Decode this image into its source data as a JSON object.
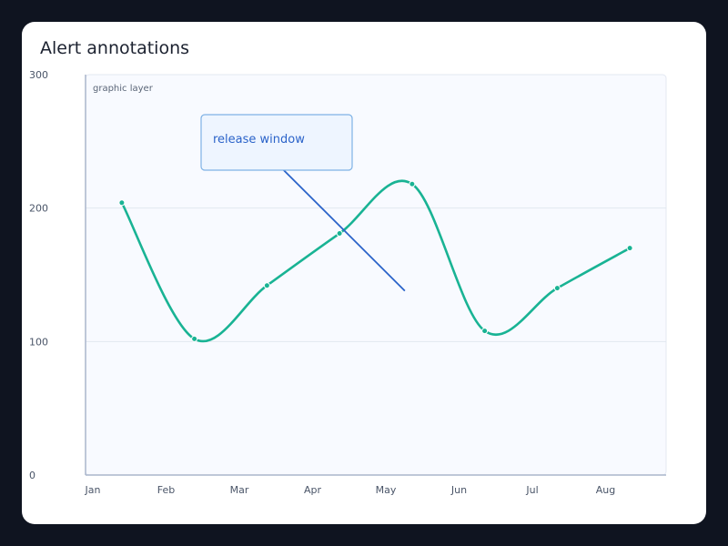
{
  "card": {
    "title": "Alert annotations"
  },
  "chart_data": {
    "type": "line",
    "categories": [
      "Jan",
      "Feb",
      "Mar",
      "Apr",
      "May",
      "Jun",
      "Jul",
      "Aug"
    ],
    "series": [
      {
        "values": [
          204,
          102,
          142,
          181,
          218,
          108,
          140,
          170
        ],
        "color": "#19b394"
      }
    ],
    "ylim": [
      0,
      300
    ],
    "yticks": [
      0,
      100,
      200,
      300
    ],
    "grid": true,
    "layer_label": "graphic layer",
    "annotation": {
      "text": "release window",
      "line_from": {
        "category": "Mar",
        "y": 230
      },
      "line_to": {
        "category": "May",
        "y": 138
      },
      "color": "#2b63c9"
    }
  }
}
